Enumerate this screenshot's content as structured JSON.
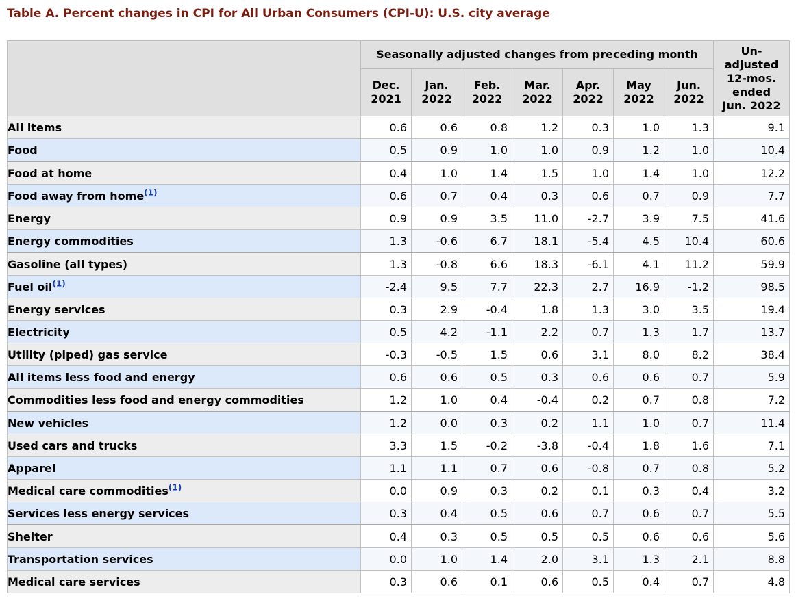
{
  "title": "Table A. Percent changes in CPI for All Urban Consumers (CPI-U): U.S. city average",
  "header": {
    "span_label": "Seasonally adjusted changes from preceding month",
    "months": [
      {
        "line1": "Dec.",
        "line2": "2021"
      },
      {
        "line1": "Jan.",
        "line2": "2022"
      },
      {
        "line1": "Feb.",
        "line2": "2022"
      },
      {
        "line1": "Mar.",
        "line2": "2022"
      },
      {
        "line1": "Apr.",
        "line2": "2022"
      },
      {
        "line1": "May",
        "line2": "2022"
      },
      {
        "line1": "Jun.",
        "line2": "2022"
      }
    ],
    "unadjusted": {
      "line1": "Un-",
      "line2": "adjusted",
      "line3": "12-mos.",
      "line4": "ended",
      "line5": "Jun. 2022"
    }
  },
  "rows": [
    {
      "label": "All items",
      "level": 0,
      "footnote": "",
      "values": [
        "0.6",
        "0.6",
        "0.8",
        "1.2",
        "0.3",
        "1.0",
        "1.3",
        "9.1"
      ]
    },
    {
      "label": "Food",
      "level": 1,
      "footnote": "",
      "values": [
        "0.5",
        "0.9",
        "1.0",
        "1.0",
        "0.9",
        "1.2",
        "1.0",
        "10.4"
      ]
    },
    {
      "label": "Food at home",
      "level": 2,
      "footnote": "",
      "values": [
        "0.4",
        "1.0",
        "1.4",
        "1.5",
        "1.0",
        "1.4",
        "1.0",
        "12.2"
      ]
    },
    {
      "label": "Food away from home",
      "level": 2,
      "footnote": "1",
      "values": [
        "0.6",
        "0.7",
        "0.4",
        "0.3",
        "0.6",
        "0.7",
        "0.9",
        "7.7"
      ]
    },
    {
      "label": "Energy",
      "level": 1,
      "footnote": "",
      "values": [
        "0.9",
        "0.9",
        "3.5",
        "11.0",
        "-2.7",
        "3.9",
        "7.5",
        "41.6"
      ]
    },
    {
      "label": "Energy commodities",
      "level": 2,
      "footnote": "",
      "values": [
        "1.3",
        "-0.6",
        "6.7",
        "18.1",
        "-5.4",
        "4.5",
        "10.4",
        "60.6"
      ]
    },
    {
      "label": "Gasoline (all types)",
      "level": 3,
      "footnote": "",
      "values": [
        "1.3",
        "-0.8",
        "6.6",
        "18.3",
        "-6.1",
        "4.1",
        "11.2",
        "59.9"
      ]
    },
    {
      "label": "Fuel oil",
      "level": 3,
      "footnote": "1",
      "values": [
        "-2.4",
        "9.5",
        "7.7",
        "22.3",
        "2.7",
        "16.9",
        "-1.2",
        "98.5"
      ]
    },
    {
      "label": "Energy services",
      "level": 2,
      "footnote": "",
      "values": [
        "0.3",
        "2.9",
        "-0.4",
        "1.8",
        "1.3",
        "3.0",
        "3.5",
        "19.4"
      ]
    },
    {
      "label": "Electricity",
      "level": 3,
      "footnote": "",
      "values": [
        "0.5",
        "4.2",
        "-1.1",
        "2.2",
        "0.7",
        "1.3",
        "1.7",
        "13.7"
      ]
    },
    {
      "label": "Utility (piped) gas service",
      "level": 3,
      "footnote": "",
      "values": [
        "-0.3",
        "-0.5",
        "1.5",
        "0.6",
        "3.1",
        "8.0",
        "8.2",
        "38.4"
      ]
    },
    {
      "label": "All items less food and energy",
      "level": 1,
      "footnote": "",
      "values": [
        "0.6",
        "0.6",
        "0.5",
        "0.3",
        "0.6",
        "0.6",
        "0.7",
        "5.9"
      ]
    },
    {
      "label": "Commodities less food and energy commodities",
      "level": 2,
      "footnote": "",
      "values": [
        "1.2",
        "1.0",
        "0.4",
        "-0.4",
        "0.2",
        "0.7",
        "0.8",
        "7.2"
      ]
    },
    {
      "label": "New vehicles",
      "level": 3,
      "footnote": "",
      "values": [
        "1.2",
        "0.0",
        "0.3",
        "0.2",
        "1.1",
        "1.0",
        "0.7",
        "11.4"
      ]
    },
    {
      "label": "Used cars and trucks",
      "level": 3,
      "footnote": "",
      "values": [
        "3.3",
        "1.5",
        "-0.2",
        "-3.8",
        "-0.4",
        "1.8",
        "1.6",
        "7.1"
      ]
    },
    {
      "label": "Apparel",
      "level": 3,
      "footnote": "",
      "values": [
        "1.1",
        "1.1",
        "0.7",
        "0.6",
        "-0.8",
        "0.7",
        "0.8",
        "5.2"
      ]
    },
    {
      "label": "Medical care commodities",
      "level": 3,
      "footnote": "1",
      "values": [
        "0.0",
        "0.9",
        "0.3",
        "0.2",
        "0.1",
        "0.3",
        "0.4",
        "3.2"
      ]
    },
    {
      "label": "Services less energy services",
      "level": 2,
      "footnote": "",
      "values": [
        "0.3",
        "0.4",
        "0.5",
        "0.6",
        "0.7",
        "0.6",
        "0.7",
        "5.5"
      ]
    },
    {
      "label": "Shelter",
      "level": 3,
      "footnote": "",
      "values": [
        "0.4",
        "0.3",
        "0.5",
        "0.5",
        "0.5",
        "0.6",
        "0.6",
        "5.6"
      ]
    },
    {
      "label": "Transportation services",
      "level": 3,
      "footnote": "",
      "values": [
        "0.0",
        "1.0",
        "1.4",
        "2.0",
        "3.1",
        "1.3",
        "2.1",
        "8.8"
      ]
    },
    {
      "label": "Medical care services",
      "level": 3,
      "footnote": "",
      "values": [
        "0.3",
        "0.6",
        "0.1",
        "0.6",
        "0.5",
        "0.4",
        "0.7",
        "4.8"
      ]
    }
  ],
  "colors": {
    "title": "#7b1c0e",
    "header_bg": "#e0e0e0",
    "row_blue": "#dce9fa",
    "row_gray": "#ededed",
    "footnote_link": "#1a3fa6"
  }
}
